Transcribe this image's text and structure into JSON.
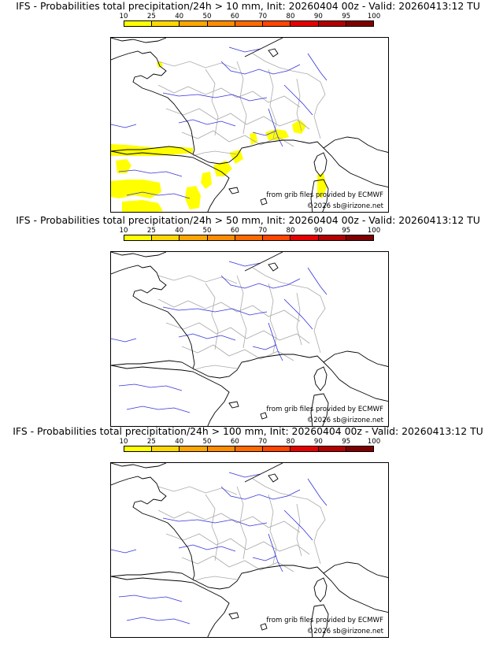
{
  "panels": [
    {
      "title": "IFS - Probabilities total precipitation/24h > 10 mm, Init: 20260404 00z - Valid: 20260413:12 TU",
      "threshold": "10 mm",
      "has_rain": true
    },
    {
      "title": "IFS - Probabilities total precipitation/24h > 50 mm, Init: 20260404 00z - Valid: 20260413:12 TU",
      "threshold": "50 mm",
      "has_rain": false
    },
    {
      "title": "IFS - Probabilities total precipitation/24h > 100 mm, Init: 20260404 00z - Valid: 20260413:12 TU",
      "threshold": "100 mm",
      "has_rain": false
    }
  ],
  "scale": {
    "labels": [
      "10",
      "25",
      "40",
      "50",
      "60",
      "70",
      "80",
      "90",
      "95",
      "100"
    ],
    "colors": [
      "#ffff00",
      "#ffd700",
      "#ffa500",
      "#ff8c00",
      "#ff6a00",
      "#ff4500",
      "#e60000",
      "#b30000",
      "#800000"
    ]
  },
  "credits": {
    "source": "from grib files provided by ECMWF",
    "copyright": "©2026 sb@irizone.net"
  },
  "colors": {
    "coast": "#000000",
    "rivers": "#3333dd",
    "borders": "#aaaaaa",
    "rain": "#ffff00"
  }
}
